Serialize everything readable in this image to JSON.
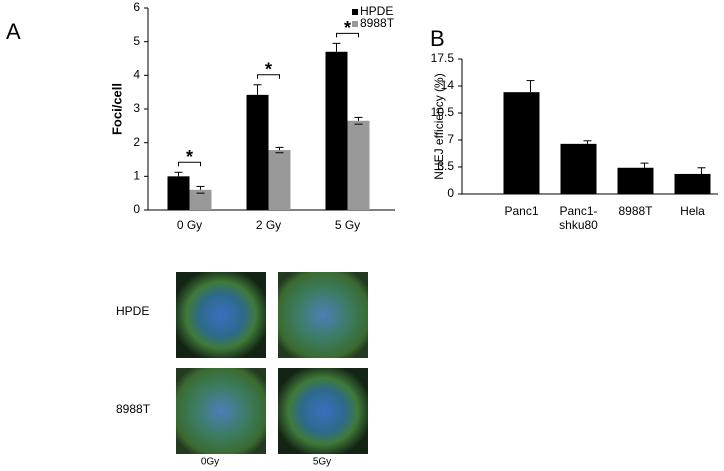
{
  "panel_labels": [
    "A",
    "B"
  ],
  "chart_data": [
    {
      "type": "bar",
      "ylabel": "Foci/cell",
      "categories": [
        "0 Gy",
        "2 Gy",
        "5 Gy"
      ],
      "series": [
        {
          "name": "HPDE",
          "color": "#000000",
          "values": [
            1.0,
            3.42,
            4.7
          ],
          "errors": [
            0.12,
            0.3,
            0.25
          ]
        },
        {
          "name": "8988T",
          "color": "#999999",
          "values": [
            0.6,
            1.78,
            2.65
          ],
          "errors": [
            0.1,
            0.08,
            0.1
          ]
        }
      ],
      "annotations": [
        "*",
        "*",
        "*"
      ],
      "ylim": [
        0,
        6
      ],
      "yticks": [
        0,
        1,
        2,
        3,
        4,
        5,
        6
      ],
      "grid": false,
      "legend": "top-right"
    },
    {
      "type": "bar",
      "ylabel": "NHEJ efficiency (%)",
      "categories": [
        "Panc1",
        "Panc1-\nshku80",
        "8988T",
        "Hela"
      ],
      "values": [
        13.2,
        6.5,
        3.4,
        2.6
      ],
      "errors": [
        1.5,
        0.4,
        0.6,
        0.8
      ],
      "color": "#000000",
      "ylim": [
        0,
        17.5
      ],
      "yticks": [
        0,
        3.5,
        7,
        10.5,
        14,
        17.5
      ],
      "grid": false
    }
  ],
  "micrographs": {
    "rows": [
      "HPDE",
      "8988T"
    ],
    "columns": [
      "0Gy",
      "5Gy"
    ]
  }
}
